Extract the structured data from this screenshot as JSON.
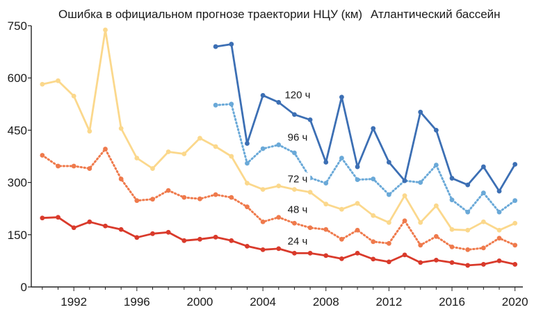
{
  "chart_data": {
    "type": "line",
    "title": "Ошибка в официальном прогнозе траектории НЦУ (км)",
    "subtitle": "Атлантический бассейн",
    "xlabel": "",
    "ylabel": "",
    "xlim": [
      1989.3,
      2020.5
    ],
    "ylim": [
      0,
      750
    ],
    "xticks": [
      1992,
      1996,
      2000,
      2004,
      2008,
      2012,
      2016,
      2020
    ],
    "yticks": [
      0,
      150,
      300,
      450,
      600,
      750
    ],
    "grid": false,
    "legend": "inline labels",
    "series": [
      {
        "name": "24 ч",
        "color": "#d93a2b",
        "dashed": false,
        "label_year": 2006.2,
        "label_value": 132,
        "x": [
          1990,
          1991,
          1992,
          1993,
          1994,
          1995,
          1996,
          1997,
          1998,
          1999,
          2000,
          2001,
          2002,
          2003,
          2004,
          2005,
          2006,
          2007,
          2008,
          2009,
          2010,
          2011,
          2012,
          2013,
          2014,
          2015,
          2016,
          2017,
          2018,
          2019,
          2020
        ],
        "values": [
          198,
          200,
          170,
          187,
          175,
          165,
          142,
          153,
          157,
          133,
          137,
          143,
          133,
          117,
          107,
          110,
          97,
          97,
          90,
          81,
          97,
          80,
          72,
          92,
          70,
          77,
          70,
          62,
          65,
          75,
          65
        ]
      },
      {
        "name": "48 ч",
        "color": "#ef7a4c",
        "dashed": true,
        "label_year": 2006.2,
        "label_value": 222,
        "x": [
          1990,
          1991,
          1992,
          1993,
          1994,
          1995,
          1996,
          1997,
          1998,
          1999,
          2000,
          2001,
          2002,
          2003,
          2004,
          2005,
          2006,
          2007,
          2008,
          2009,
          2010,
          2011,
          2012,
          2013,
          2014,
          2015,
          2016,
          2017,
          2018,
          2019,
          2020
        ],
        "values": [
          378,
          347,
          347,
          340,
          396,
          310,
          248,
          252,
          277,
          257,
          253,
          265,
          257,
          230,
          187,
          200,
          183,
          170,
          165,
          137,
          163,
          130,
          125,
          190,
          120,
          145,
          115,
          107,
          112,
          140,
          120
        ]
      },
      {
        "name": "72 ч",
        "color": "#fbd88c",
        "dashed": false,
        "label_year": 2006.2,
        "label_value": 310,
        "x": [
          1990,
          1991,
          1992,
          1993,
          1994,
          1995,
          1996,
          1997,
          1998,
          1999,
          2000,
          2001,
          2002,
          2003,
          2004,
          2005,
          2006,
          2007,
          2008,
          2009,
          2010,
          2011,
          2012,
          2013,
          2014,
          2015,
          2016,
          2017,
          2018,
          2019,
          2020
        ],
        "values": [
          582,
          592,
          548,
          447,
          738,
          455,
          370,
          340,
          388,
          382,
          427,
          403,
          375,
          298,
          280,
          290,
          280,
          272,
          238,
          223,
          240,
          205,
          185,
          262,
          185,
          233,
          165,
          163,
          187,
          163,
          183
        ]
      },
      {
        "name": "96 ч",
        "color": "#6aa9d8",
        "dashed": true,
        "label_year": 2006.2,
        "label_value": 430,
        "x": [
          2001,
          2002,
          2003,
          2004,
          2005,
          2006,
          2007,
          2008,
          2009,
          2010,
          2011,
          2012,
          2013,
          2014,
          2015,
          2016,
          2017,
          2018,
          2019,
          2020
        ],
        "values": [
          522,
          525,
          355,
          397,
          408,
          385,
          313,
          298,
          370,
          308,
          310,
          265,
          305,
          300,
          350,
          250,
          215,
          270,
          215,
          248
        ]
      },
      {
        "name": "120 ч",
        "color": "#3c6fb4",
        "dashed": false,
        "label_year": 2006.2,
        "label_value": 552,
        "x": [
          2001,
          2002,
          2003,
          2004,
          2005,
          2006,
          2007,
          2008,
          2009,
          2010,
          2011,
          2012,
          2013,
          2014,
          2015,
          2016,
          2017,
          2018,
          2019,
          2020
        ],
        "values": [
          690,
          697,
          412,
          550,
          530,
          495,
          480,
          358,
          545,
          345,
          455,
          358,
          305,
          502,
          450,
          312,
          293,
          345,
          275,
          352
        ]
      }
    ]
  }
}
